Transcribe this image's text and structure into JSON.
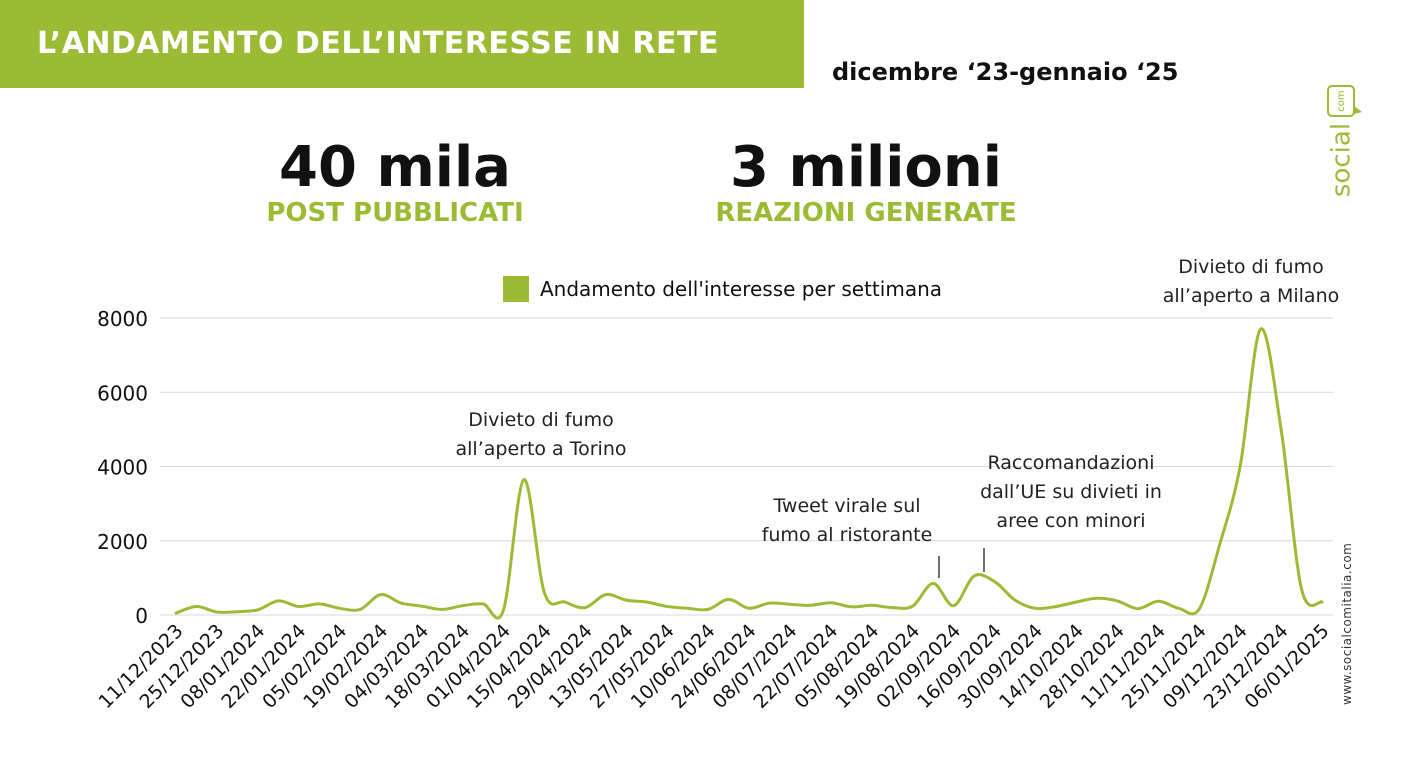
{
  "header": {
    "title": "L’ANDAMENTO DELL’INTERESSE IN RETE",
    "period": "dicembre ‘23-gennaio ‘25"
  },
  "brand": {
    "name": "social",
    "suffix": "com"
  },
  "stats": [
    {
      "value": "40 mila",
      "label": "POST PUBBLICATI"
    },
    {
      "value": "3 milioni",
      "label": "REAZIONI GENERATE"
    }
  ],
  "watermark": "www.socialcomitalia.com",
  "colors": {
    "accent": "#9bbb35",
    "grid": "#d9d9d9",
    "text": "#111111"
  },
  "chart_data": {
    "type": "line",
    "legend": "Andamento dell'interesse per settimana",
    "ylim": [
      0,
      8000
    ],
    "yticks": [
      0,
      2000,
      4000,
      6000,
      8000
    ],
    "grid": true,
    "xtick_labels": [
      "11/12/2023",
      "25/12/2023",
      "08/01/2024",
      "22/01/2024",
      "05/02/2024",
      "19/02/2024",
      "04/03/2024",
      "18/03/2024",
      "01/04/2024",
      "15/04/2024",
      "29/04/2024",
      "13/05/2024",
      "27/05/2024",
      "10/06/2024",
      "24/06/2024",
      "08/07/2024",
      "22/07/2024",
      "05/08/2024",
      "19/08/2024",
      "02/09/2024",
      "16/09/2024",
      "30/09/2024",
      "14/10/2024",
      "28/10/2024",
      "11/11/2024",
      "25/11/2024",
      "09/12/2024",
      "23/12/2024",
      "06/01/2025"
    ],
    "values": [
      50,
      230,
      80,
      90,
      140,
      380,
      230,
      300,
      180,
      150,
      550,
      320,
      240,
      150,
      250,
      300,
      130,
      3650,
      600,
      350,
      200,
      550,
      400,
      350,
      230,
      180,
      150,
      420,
      180,
      320,
      290,
      260,
      330,
      220,
      260,
      200,
      240,
      850,
      250,
      1050,
      900,
      400,
      180,
      230,
      350,
      450,
      380,
      170,
      370,
      180,
      160,
      1900,
      4000,
      7700,
      5000,
      700,
      350
    ],
    "annotations": [
      {
        "text": [
          "Divieto di fumo",
          "all’aperto a Torino"
        ],
        "week": 17
      },
      {
        "text": [
          "Tweet virale sul",
          "fumo al ristorante"
        ],
        "week": 37
      },
      {
        "text": [
          "Raccomandazioni",
          "dall’UE su divieti in",
          "aree con minori"
        ],
        "week": 39
      },
      {
        "text": [
          "Divieto di fumo",
          "all’aperto a Milano"
        ],
        "week": 53
      }
    ]
  }
}
